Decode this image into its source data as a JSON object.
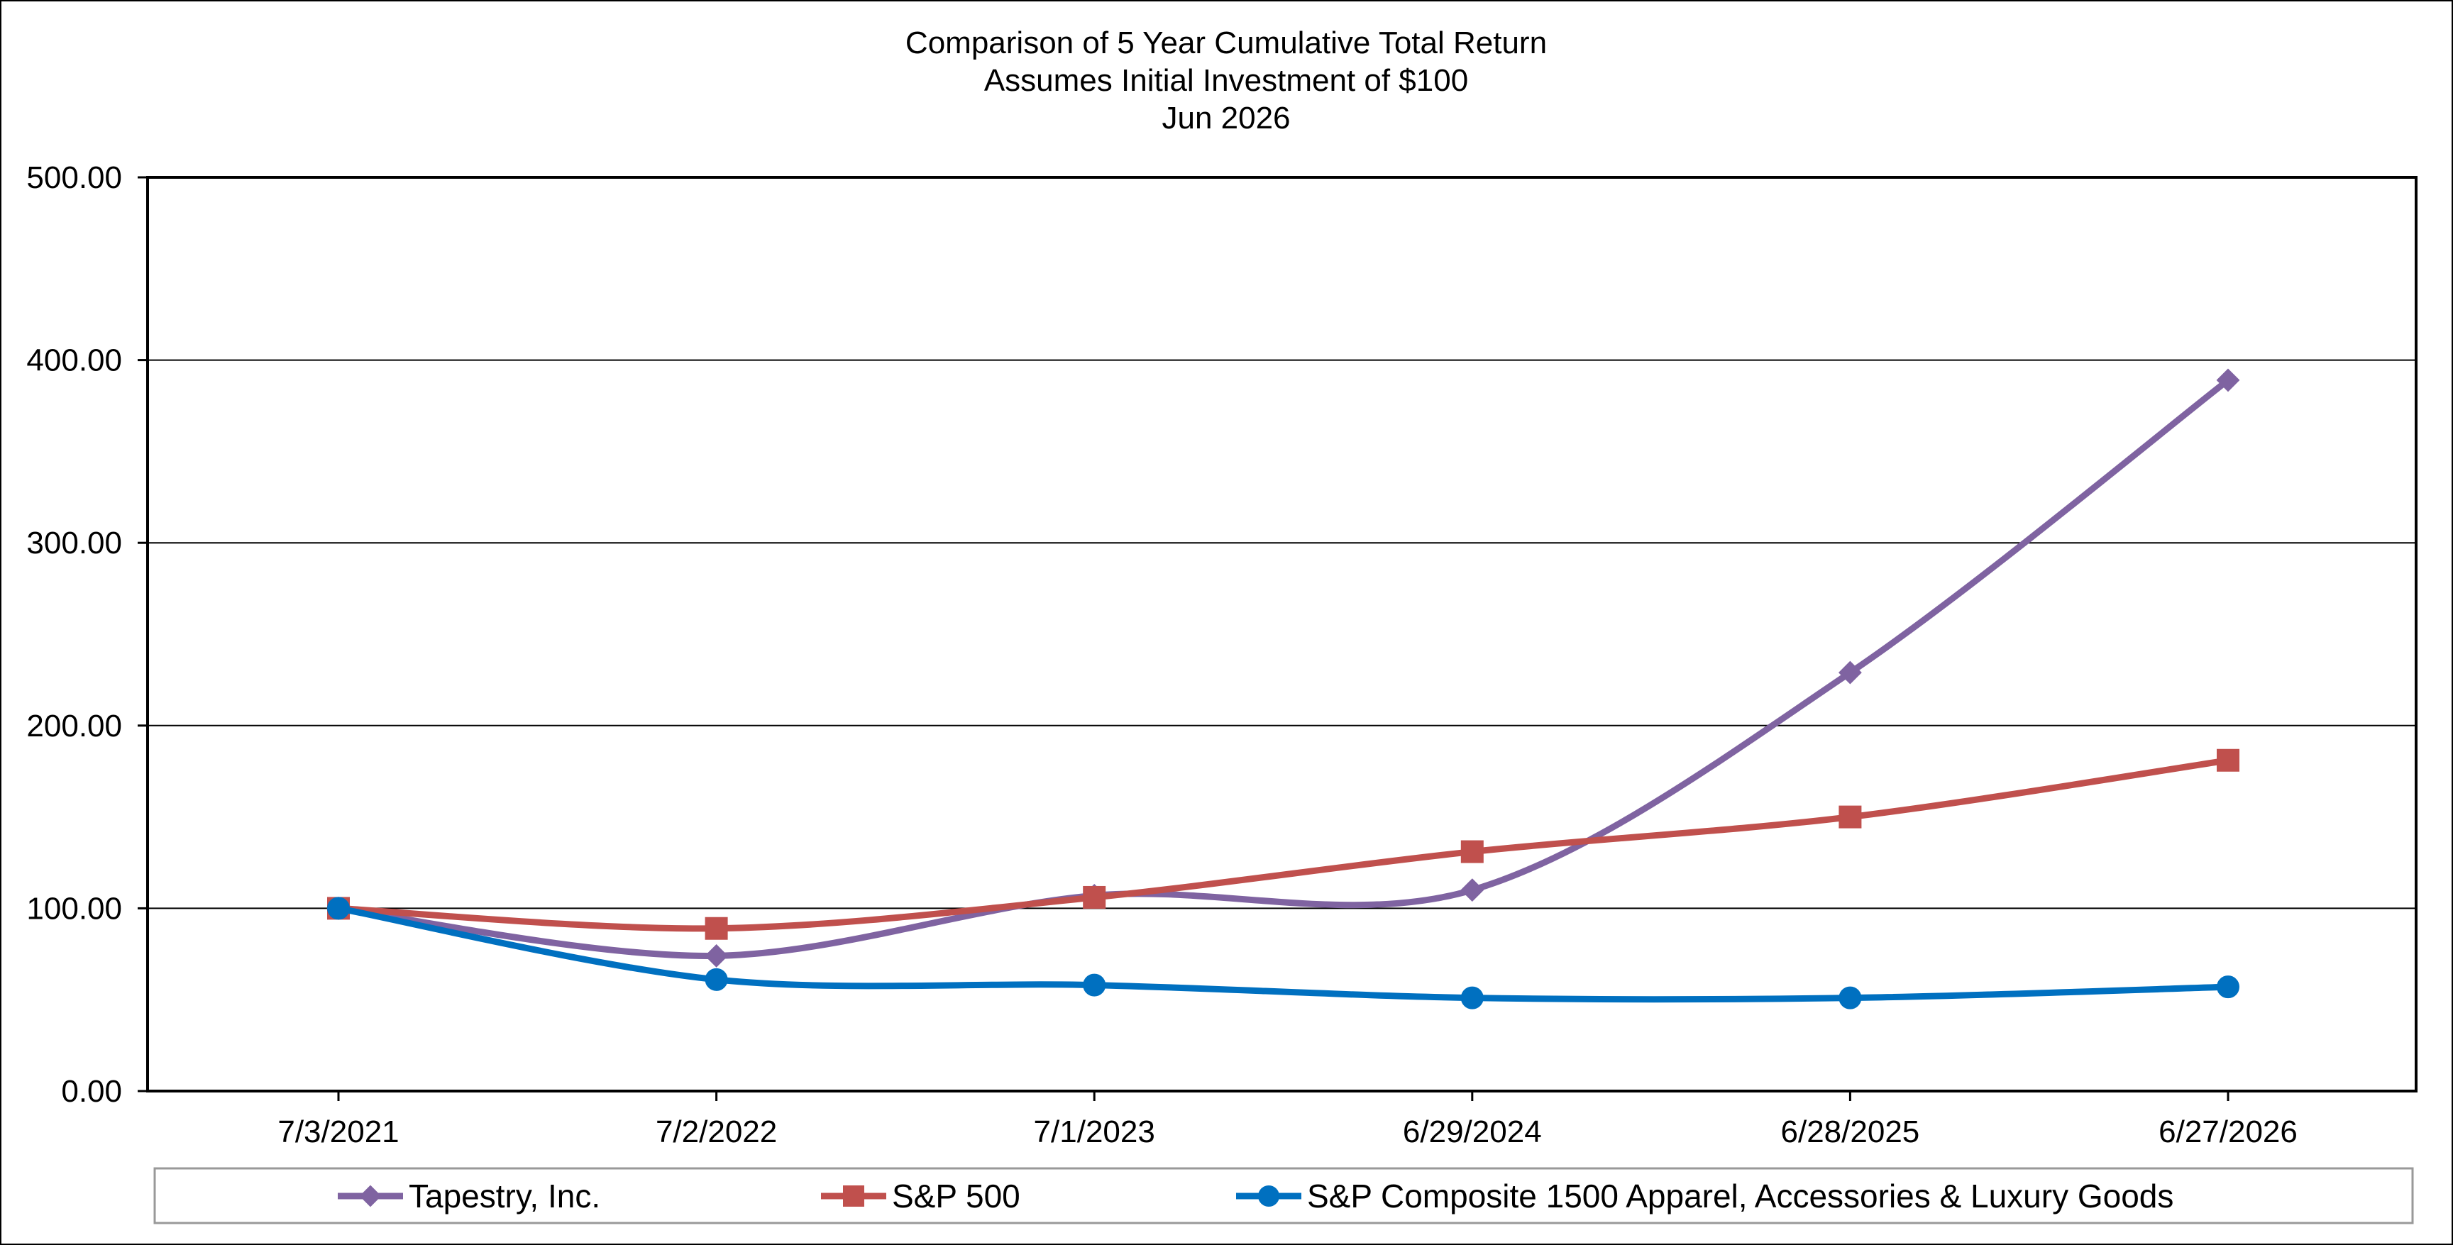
{
  "chart_data": {
    "type": "line",
    "title_lines": [
      "Comparison of 5 Year Cumulative Total Return",
      "Assumes Initial Investment of $100",
      "Jun 2026"
    ],
    "xlabel": "",
    "ylabel": "",
    "categories": [
      "7/3/2021",
      "7/2/2022",
      "7/1/2023",
      "6/29/2024",
      "6/28/2025",
      "6/27/2026"
    ],
    "ylim": [
      0,
      500
    ],
    "yticks": [
      "0.00",
      "100.00",
      "200.00",
      "300.00",
      "400.00",
      "500.00"
    ],
    "ytick_values": [
      0,
      100,
      200,
      300,
      400,
      500
    ],
    "grid": true,
    "legend_position": "bottom",
    "series": [
      {
        "name": "Tapestry, Inc.",
        "color": "#7f63a1",
        "marker": "diamond",
        "values": [
          100,
          74,
          107,
          110,
          229,
          389
        ]
      },
      {
        "name": "S&P 500",
        "color": "#c0504d",
        "marker": "square",
        "values": [
          100,
          89,
          106,
          131,
          150,
          181
        ]
      },
      {
        "name": "S&P Composite 1500 Apparel, Accessories & Luxury Goods",
        "color": "#0070c0",
        "marker": "circle",
        "values": [
          100,
          61,
          58,
          51,
          51,
          57
        ]
      }
    ]
  }
}
